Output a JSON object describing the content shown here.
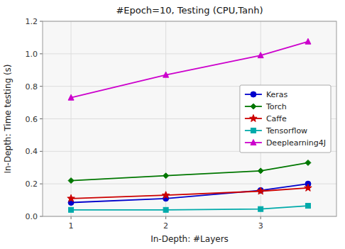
{
  "chart_data": {
    "type": "line",
    "title": "#Epoch=10, Testing (CPU,Tanh)",
    "x_label": "In-Depth: #Layers",
    "y_label": "In-Depth: Time testing (s)",
    "x": [
      1,
      2,
      3,
      3.5
    ],
    "series": [
      {
        "name": "Keras",
        "color": "#0000cc",
        "marker": "circle",
        "values": [
          0.085,
          0.11,
          0.16,
          0.2
        ]
      },
      {
        "name": "Torch",
        "color": "#007700",
        "marker": "diamond",
        "values": [
          0.22,
          0.25,
          0.28,
          0.33
        ]
      },
      {
        "name": "Caffe",
        "color": "#cc0000",
        "marker": "star",
        "values": [
          0.11,
          0.13,
          0.155,
          0.175
        ]
      },
      {
        "name": "Tensorflow",
        "color": "#00aaaa",
        "marker": "square",
        "values": [
          0.04,
          0.04,
          0.045,
          0.065
        ]
      },
      {
        "name": "Deeplearning4J",
        "color": "#cc00cc",
        "marker": "triangle",
        "values": [
          0.73,
          0.87,
          0.99,
          1.075
        ]
      }
    ],
    "xlim": [
      0.7,
      3.8
    ],
    "ylim": [
      0,
      1.2
    ],
    "xticks": [
      1,
      2,
      3
    ],
    "yticks": [
      {
        "value": 0,
        "label": "0.0"
      },
      0.2,
      0.4,
      0.6,
      0.8,
      {
        "value": 1,
        "label": "1.0"
      },
      1.2
    ],
    "grid": true,
    "legend": "center right"
  }
}
